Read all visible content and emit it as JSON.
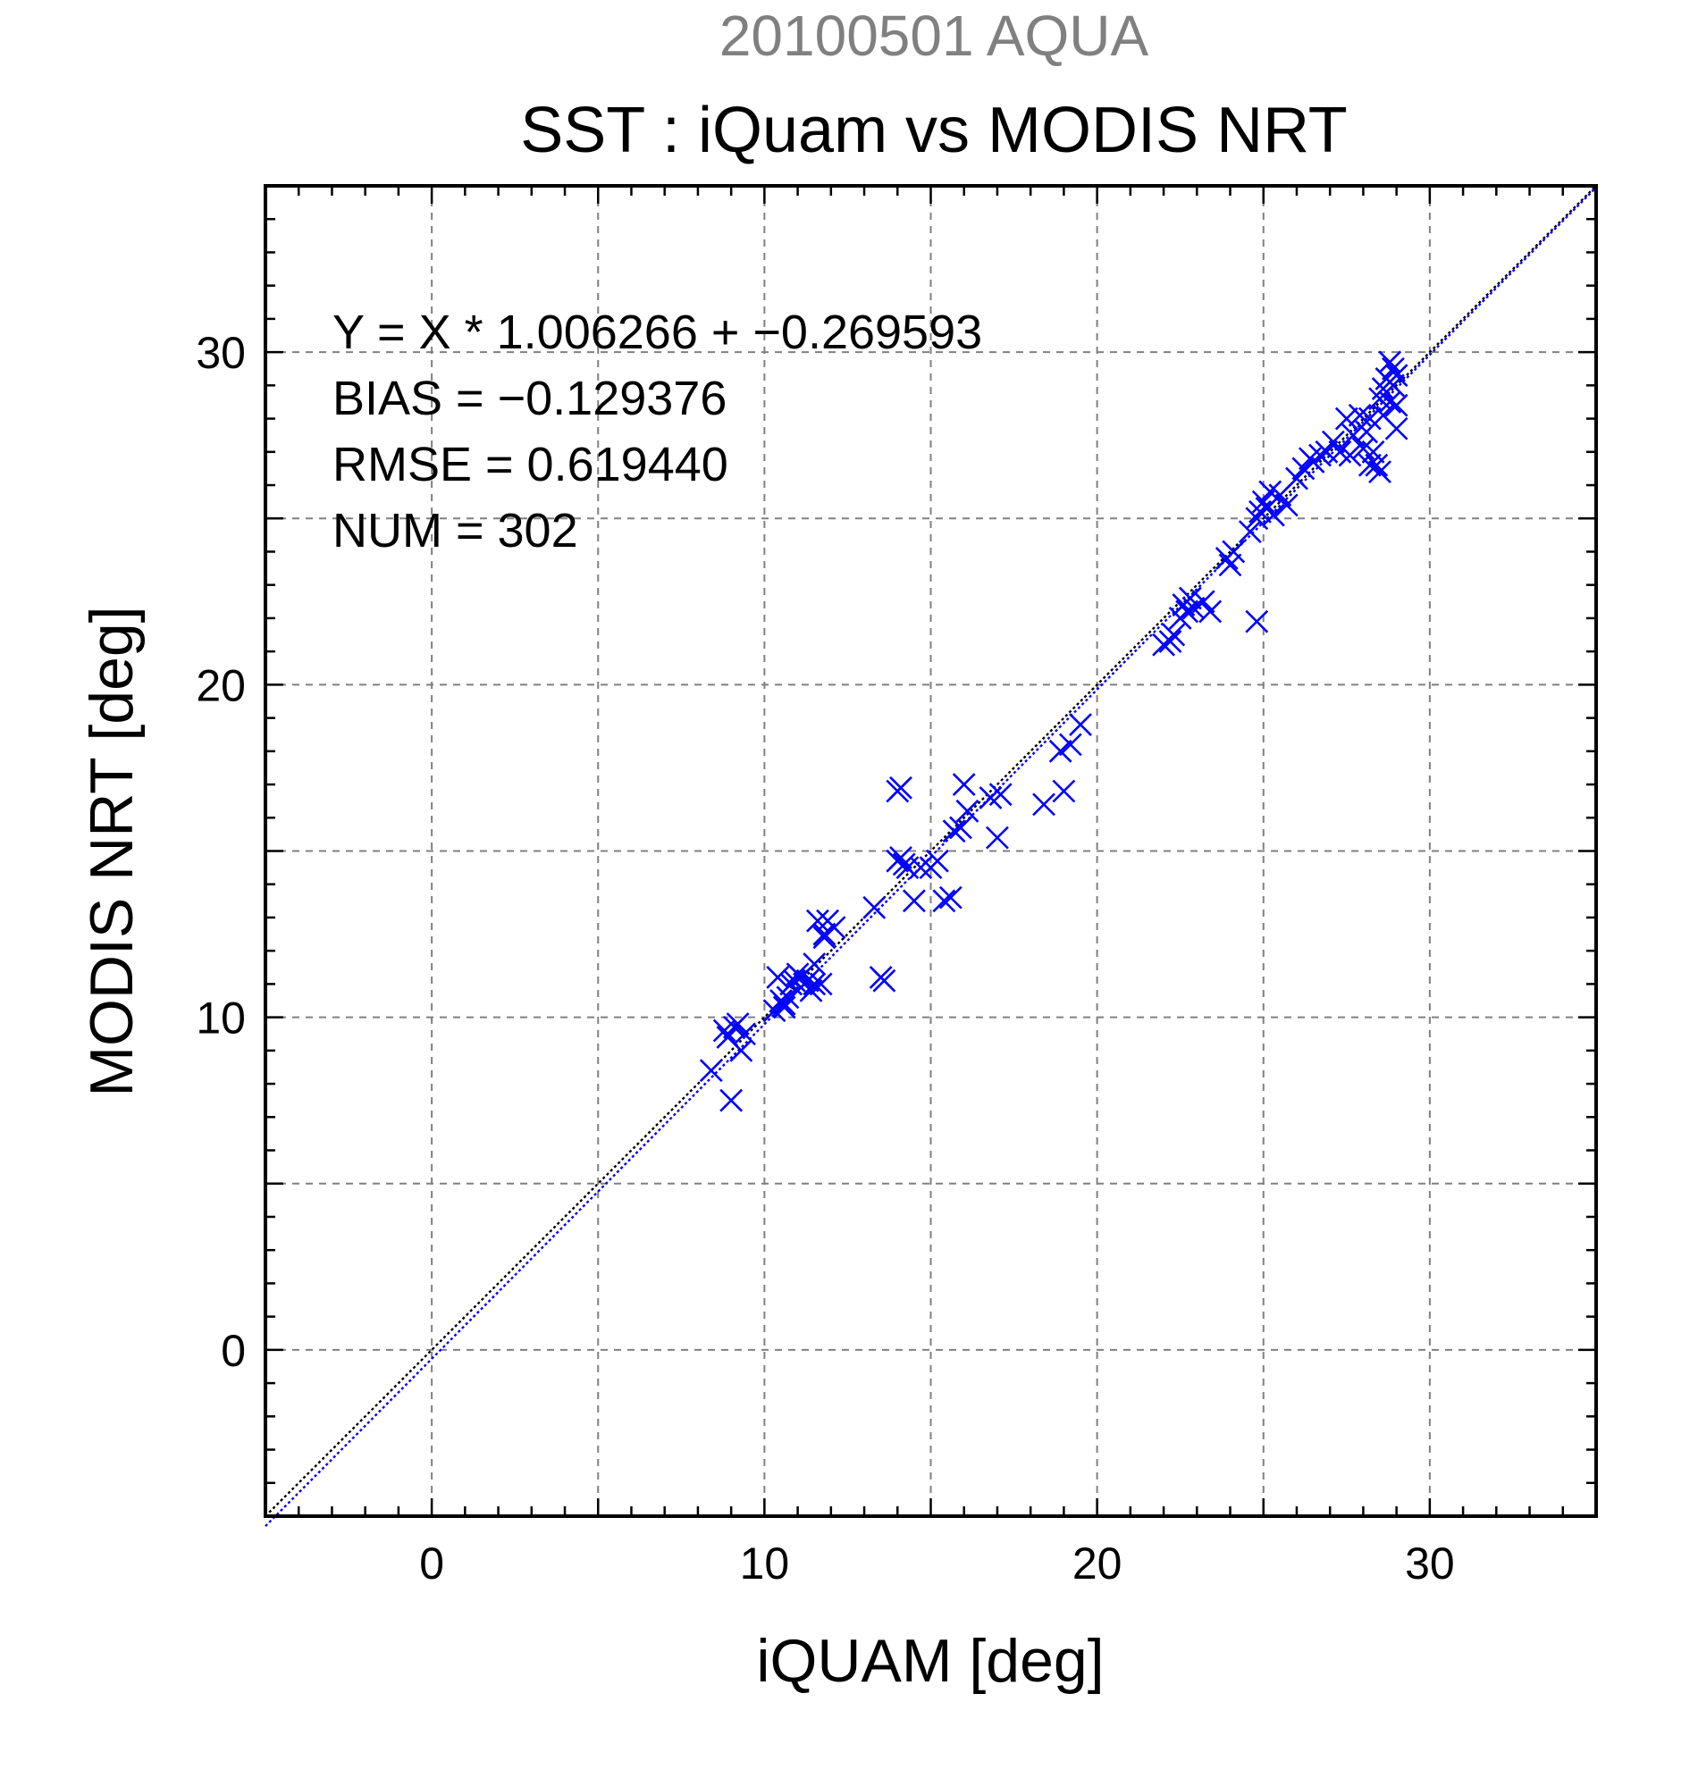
{
  "chart_data": {
    "type": "scatter",
    "supertitle": "20100501 AQUA",
    "title": "SST : iQuam vs MODIS NRT",
    "xlabel": "iQUAM [deg]",
    "ylabel": "MODIS NRT [deg]",
    "xlim": [
      -5,
      35
    ],
    "ylim": [
      -5,
      35
    ],
    "xticks": [
      0,
      10,
      20,
      30
    ],
    "yticks": [
      0,
      10,
      20,
      30
    ],
    "grid": true,
    "grid_step": 5,
    "minor_tick_step": 1,
    "marker": "x",
    "marker_color": "#0000ff",
    "stats": [
      "Y = X * 1.006266 + −0.269593",
      "BIAS = −0.129376",
      "RMSE = 0.619440",
      "NUM = 302"
    ],
    "lines": [
      {
        "slope": 1.0,
        "intercept": 0.0,
        "color": "#000000",
        "style": "dotted"
      },
      {
        "slope": 1.006266,
        "intercept": -0.269593,
        "color": "#0000ff",
        "style": "dotted"
      }
    ],
    "x": [
      8.4,
      8.8,
      8.9,
      9.0,
      9.1,
      9.2,
      9.3,
      9.4,
      10.3,
      10.4,
      10.5,
      10.6,
      10.7,
      10.8,
      10.9,
      11.0,
      11.1,
      11.2,
      11.3,
      11.4,
      11.5,
      11.6,
      11.7,
      11.8,
      12.1,
      10.6,
      11.5,
      11.9,
      11.8,
      13.3,
      13.5,
      13.6,
      14.0,
      14.1,
      14.2,
      14.3,
      14.5,
      14.7,
      15.0,
      15.2,
      15.4,
      15.6,
      15.7,
      15.9,
      16.1,
      16.8,
      17.0,
      17.1,
      14.0,
      14.1,
      16.0,
      18.4,
      18.9,
      19.0,
      19.2,
      19.5,
      22.0,
      22.2,
      22.3,
      22.5,
      22.6,
      22.7,
      22.8,
      22.9,
      23.2,
      23.4,
      23.9,
      24.0,
      24.1,
      24.6,
      24.8,
      24.9,
      25.0,
      25.1,
      25.2,
      25.3,
      25.5,
      25.7,
      26.0,
      26.2,
      26.4,
      26.5,
      26.7,
      26.9,
      27.1,
      27.3,
      27.5,
      27.7,
      27.9,
      28.0,
      28.1,
      28.2,
      28.3,
      28.5,
      28.6,
      28.7,
      28.8,
      28.9,
      29.0,
      28.4,
      28.6,
      28.8,
      29.0,
      27.6,
      28.2,
      28.5,
      29.0,
      28.9,
      24.8
    ],
    "y": [
      8.4,
      9.6,
      9.4,
      7.5,
      9.7,
      9.8,
      9.0,
      9.5,
      10.2,
      11.2,
      10.5,
      10.3,
      10.6,
      11.0,
      11.1,
      11.3,
      11.2,
      11.0,
      11.1,
      10.8,
      11.0,
      12.9,
      11.0,
      12.4,
      12.7,
      10.4,
      11.6,
      12.9,
      12.5,
      13.3,
      11.2,
      11.1,
      14.7,
      14.8,
      14.6,
      14.5,
      13.5,
      14.5,
      14.5,
      14.7,
      13.5,
      13.6,
      15.6,
      15.7,
      16.2,
      16.6,
      15.4,
      16.7,
      16.8,
      16.9,
      17.0,
      16.4,
      18.0,
      16.8,
      18.2,
      18.8,
      21.2,
      21.3,
      21.5,
      22.0,
      22.4,
      22.2,
      22.6,
      22.3,
      22.5,
      22.2,
      23.8,
      23.6,
      24.0,
      24.6,
      25.0,
      25.2,
      25.5,
      25.3,
      25.8,
      25.1,
      25.7,
      25.4,
      26.2,
      26.5,
      26.8,
      26.7,
      26.9,
      27.0,
      27.3,
      27.0,
      28.0,
      27.5,
      28.1,
      27.1,
      27.6,
      28.0,
      27.0,
      28.6,
      28.9,
      29.2,
      28.5,
      29.0,
      29.3,
      26.6,
      28.1,
      29.7,
      28.4,
      26.9,
      26.6,
      26.4,
      27.7,
      29.5,
      21.9
    ]
  }
}
